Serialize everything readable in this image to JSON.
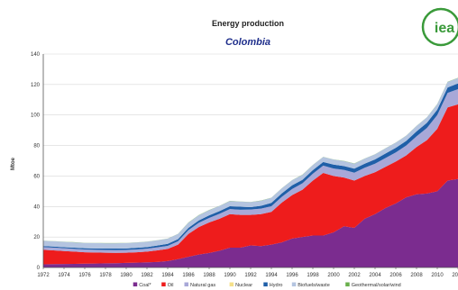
{
  "logo": {
    "text": "iea",
    "color": "#3a9a3a"
  },
  "chart_data": {
    "type": "area",
    "stacked": true,
    "title": "Energy production",
    "subtitle": "Colombia",
    "xlabel": "",
    "ylabel": "Mtoe",
    "ylim": [
      0,
      140
    ],
    "yticks": [
      0,
      20,
      40,
      60,
      80,
      100,
      120,
      140
    ],
    "xticks": [
      "1972",
      "1974",
      "1976",
      "1978",
      "1980",
      "1982",
      "1984",
      "1986",
      "1988",
      "1990",
      "1992",
      "1994",
      "1996",
      "1998",
      "2000",
      "2002",
      "2004",
      "2006",
      "2008",
      "2010",
      "2012"
    ],
    "grid": true,
    "legend_position": "bottom",
    "x": [
      1971,
      1972,
      1973,
      1974,
      1975,
      1976,
      1977,
      1978,
      1979,
      1980,
      1981,
      1982,
      1983,
      1984,
      1985,
      1986,
      1987,
      1988,
      1989,
      1990,
      1991,
      1992,
      1993,
      1994,
      1995,
      1996,
      1997,
      1998,
      1999,
      2000,
      2001,
      2002,
      2003,
      2004,
      2005,
      2006,
      2007,
      2008,
      2009,
      2010,
      2011,
      2012
    ],
    "series": [
      {
        "name": "Coal*",
        "color": "#7b2c8f",
        "values": [
          2.0,
          2.1,
          2.2,
          2.3,
          2.4,
          2.5,
          2.6,
          2.7,
          2.8,
          3.0,
          3.2,
          3.4,
          3.6,
          4.2,
          5.5,
          7.0,
          8.5,
          9.5,
          11.0,
          13.0,
          13.0,
          14.5,
          14.0,
          15.0,
          16.5,
          19.0,
          20.0,
          21.0,
          21.0,
          23.0,
          27.0,
          26.0,
          32.0,
          35.0,
          39.0,
          42.0,
          46.0,
          48.0,
          48.5,
          50.0,
          57.0,
          58.0
        ]
      },
      {
        "name": "Oil",
        "color": "#ee1c1c",
        "values": [
          10.0,
          9.5,
          9.0,
          8.5,
          8.0,
          7.5,
          7.2,
          7.0,
          6.8,
          6.7,
          6.8,
          7.0,
          7.6,
          8.0,
          9.5,
          15.0,
          18.0,
          20.0,
          21.0,
          22.0,
          21.5,
          20.0,
          21.0,
          21.5,
          26.0,
          28.5,
          31.0,
          36.0,
          41.0,
          37.0,
          32.0,
          31.0,
          28.0,
          27.5,
          27.0,
          27.5,
          27.5,
          31.0,
          35.0,
          41.0,
          48.0,
          49.0
        ]
      },
      {
        "name": "Natural gas",
        "color": "#a8a8d8",
        "values": [
          1.8,
          1.8,
          1.8,
          1.8,
          1.8,
          1.8,
          1.8,
          1.8,
          1.8,
          1.8,
          1.8,
          1.9,
          2.0,
          2.0,
          2.2,
          2.5,
          2.8,
          3.0,
          3.2,
          3.3,
          3.4,
          3.5,
          3.6,
          3.7,
          3.8,
          4.0,
          4.2,
          4.5,
          4.8,
          4.9,
          5.0,
          5.2,
          5.4,
          5.6,
          5.8,
          6.0,
          6.5,
          7.0,
          8.0,
          9.0,
          9.5,
          10.0
        ]
      },
      {
        "name": "Nuclear",
        "color": "#f5e08a",
        "values": [
          0,
          0,
          0,
          0,
          0,
          0,
          0,
          0,
          0,
          0,
          0,
          0,
          0,
          0,
          0,
          0,
          0,
          0,
          0,
          0,
          0,
          0,
          0,
          0,
          0,
          0,
          0,
          0,
          0,
          0,
          0,
          0,
          0,
          0,
          0,
          0,
          0,
          0,
          0,
          0,
          0,
          0
        ]
      },
      {
        "name": "Hydro",
        "color": "#1f5fa8",
        "values": [
          0.6,
          0.6,
          0.7,
          0.7,
          0.8,
          0.8,
          0.9,
          0.9,
          1.0,
          1.0,
          1.1,
          1.1,
          1.2,
          1.3,
          1.4,
          1.5,
          1.6,
          1.7,
          1.8,
          1.9,
          2.0,
          1.6,
          1.9,
          2.2,
          2.3,
          2.4,
          2.3,
          2.4,
          2.4,
          2.6,
          2.5,
          2.6,
          2.7,
          2.8,
          2.9,
          3.0,
          3.0,
          3.3,
          3.4,
          3.5,
          3.6,
          3.7
        ]
      },
      {
        "name": "Biofuels/waste",
        "color": "#b4c4e0",
        "values": [
          3.5,
          3.5,
          3.5,
          3.5,
          3.5,
          3.5,
          3.5,
          3.5,
          3.5,
          3.5,
          3.5,
          3.5,
          3.4,
          3.4,
          3.4,
          3.4,
          3.4,
          3.4,
          3.4,
          3.4,
          3.3,
          3.3,
          3.3,
          3.3,
          3.3,
          3.3,
          3.3,
          3.3,
          3.3,
          3.3,
          3.3,
          3.3,
          3.3,
          3.3,
          3.4,
          3.4,
          3.4,
          3.5,
          3.5,
          3.6,
          3.6,
          3.6
        ]
      },
      {
        "name": "Geothermal/solar/wind",
        "color": "#6ab04c",
        "values": [
          0.1,
          0.1,
          0.1,
          0.1,
          0.1,
          0.1,
          0.1,
          0.1,
          0.1,
          0.1,
          0.1,
          0.1,
          0.1,
          0.1,
          0.1,
          0.1,
          0.1,
          0.1,
          0.1,
          0.1,
          0.1,
          0.1,
          0.1,
          0.1,
          0.1,
          0.1,
          0.1,
          0.1,
          0.1,
          0.1,
          0.1,
          0.1,
          0.1,
          0.1,
          0.1,
          0.1,
          0.1,
          0.1,
          0.1,
          0.1,
          0.1,
          0.1
        ]
      }
    ]
  }
}
